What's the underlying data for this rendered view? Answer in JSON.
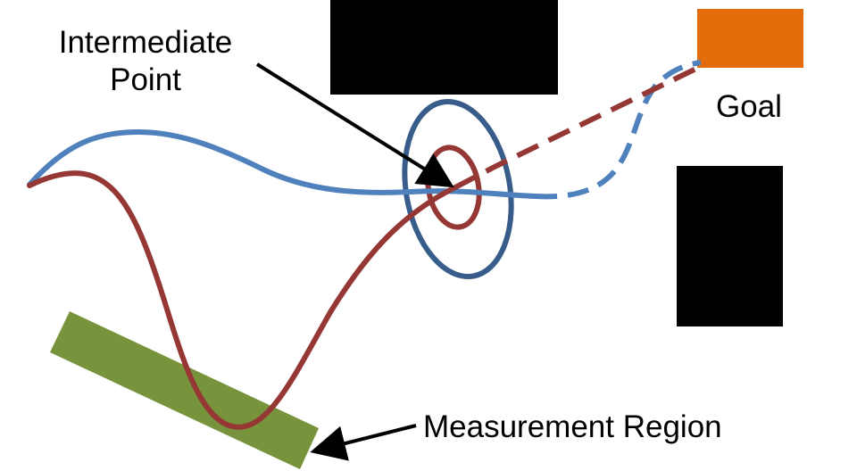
{
  "labels": {
    "intermediate_line1": "Intermediate",
    "intermediate_line2": "Point",
    "goal": "Goal",
    "measurement_region": "Measurement Region"
  },
  "colors": {
    "blue_path": "#4f81bd",
    "red_path": "#953735",
    "ellipse_outer": "#385d8a",
    "ellipse_inner": "#953735",
    "obstacle": "#000000",
    "goal": "#e46c0a",
    "measurement_region": "#77933c",
    "arrow": "#000000"
  }
}
